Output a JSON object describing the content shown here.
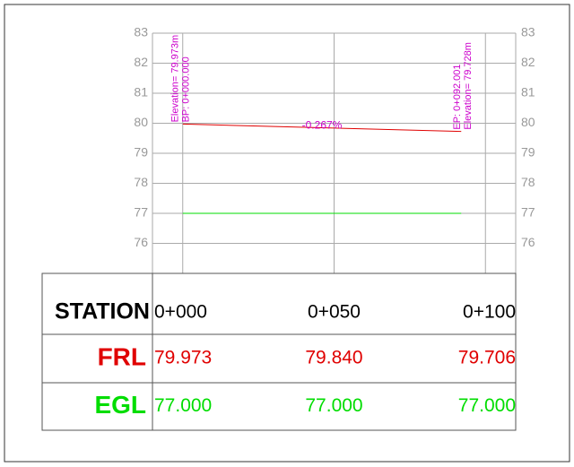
{
  "chart_data": {
    "type": "line",
    "annotations": {
      "bp_elevation": "Elevation= 79.973m",
      "bp_station": "BP: 0+000.000",
      "grade": "-0.267%",
      "ep_station": "EP: 0+092.001",
      "ep_elevation": "Elevation= 79.728m"
    },
    "xlim": [
      -10,
      110
    ],
    "xticks": [
      {
        "value": 0,
        "label": "0+000"
      },
      {
        "value": 50,
        "label": "0+050"
      },
      {
        "value": 100,
        "label": "0+100"
      }
    ],
    "ylim": [
      75,
      83
    ],
    "yticks": [
      76,
      77,
      78,
      79,
      80,
      81,
      82,
      83
    ],
    "grid": true,
    "series": [
      {
        "name": "FRL",
        "color": "#e00000",
        "x": [
          0,
          92.001
        ],
        "values": [
          79.973,
          79.728
        ],
        "row": [
          "79.973",
          "79.840",
          "79.706"
        ]
      },
      {
        "name": "EGL",
        "color": "#00dd00",
        "x": [
          0,
          92.001
        ],
        "values": [
          77,
          77
        ],
        "row": [
          "77.000",
          "77.000",
          "77.000"
        ]
      }
    ],
    "station_header": "STATION"
  }
}
